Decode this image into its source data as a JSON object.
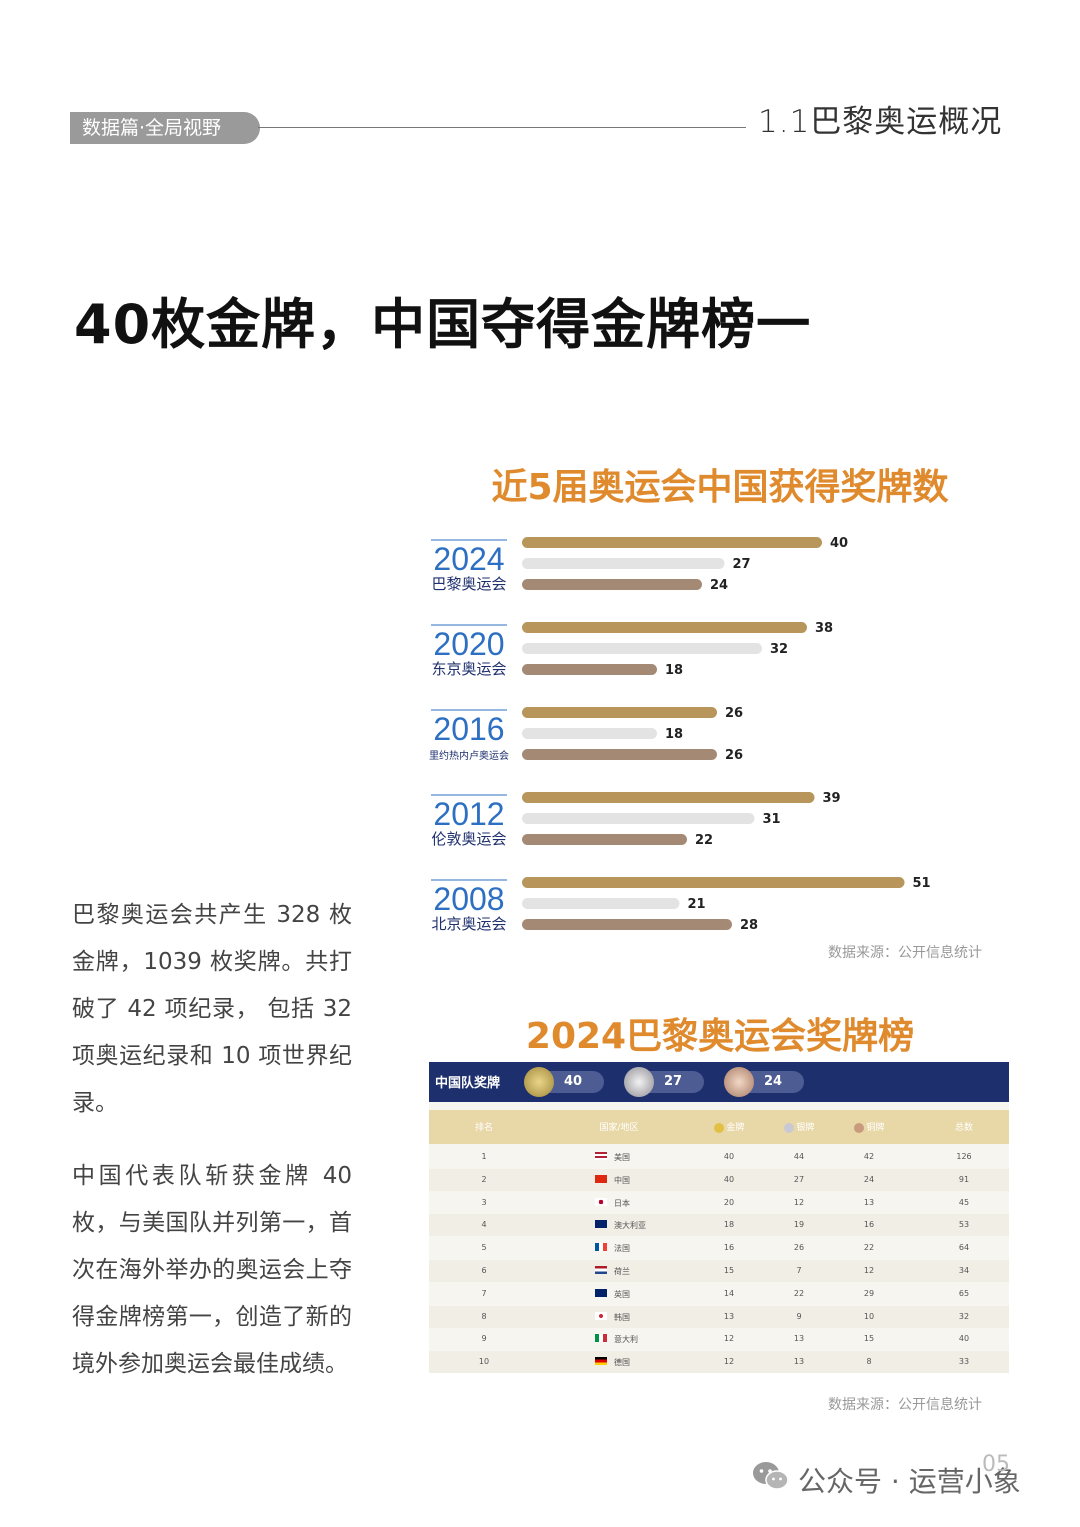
{
  "header": {
    "section_tag": "数据篇·全局视野",
    "section_title": "1.1巴黎奥运概况"
  },
  "headline": "40枚金牌，中国夺得金牌榜一",
  "body": {
    "paragraph1": "巴黎奥运会共产生 328 枚金牌，1039 枚奖牌。共打破了 42 项纪录， 包括 32 项奥运纪录和 10 项世界纪录。",
    "paragraph2": "中国代表队斩获金牌 40 枚，与美国队并列第一，首次在海外举办的奥运会上夺得金牌榜第一，创造了新的境外参加奥运会最佳成绩。"
  },
  "chart_data": {
    "type": "bar",
    "title": "近5届奥运会中国获得奖牌数",
    "categories": [
      {
        "year": "2024",
        "name": "巴黎奥运会"
      },
      {
        "year": "2020",
        "name": "东京奥运会"
      },
      {
        "year": "2016",
        "name": "里约热内卢奥运会"
      },
      {
        "year": "2012",
        "name": "伦敦奥运会"
      },
      {
        "year": "2008",
        "name": "北京奥运会"
      }
    ],
    "series": [
      {
        "key": "gold",
        "values": [
          40,
          38,
          26,
          39,
          51
        ],
        "color": "#b8955a"
      },
      {
        "key": "silver",
        "values": [
          27,
          32,
          18,
          31,
          21
        ],
        "color": "#e3e3e3"
      },
      {
        "key": "bronze",
        "values": [
          24,
          18,
          26,
          22,
          28
        ],
        "color": "#a48a74"
      }
    ],
    "xlim": [
      0,
      55
    ],
    "source": "数据来源：公开信息统计"
  },
  "colors": {
    "accent_orange": "#e08a2e",
    "year_blue": "#2d6fc2",
    "navy": "#1e2f6e"
  },
  "medal_table": {
    "title": "2024巴黎奥运会奖牌榜",
    "team_label": "中国队奖牌",
    "china_totals": {
      "gold": "40",
      "silver": "27",
      "bronze": "24"
    },
    "columns": [
      "排名",
      "国家/地区",
      "金牌",
      "银牌",
      "铜牌",
      "总数"
    ],
    "rows": [
      {
        "rank": "1",
        "country": "美国",
        "flag": "us",
        "gold": "40",
        "silver": "44",
        "bronze": "42",
        "total": "126"
      },
      {
        "rank": "2",
        "country": "中国",
        "flag": "cn",
        "gold": "40",
        "silver": "27",
        "bronze": "24",
        "total": "91"
      },
      {
        "rank": "3",
        "country": "日本",
        "flag": "jp",
        "gold": "20",
        "silver": "12",
        "bronze": "13",
        "total": "45"
      },
      {
        "rank": "4",
        "country": "澳大利亚",
        "flag": "au",
        "gold": "18",
        "silver": "19",
        "bronze": "16",
        "total": "53"
      },
      {
        "rank": "5",
        "country": "法国",
        "flag": "fr",
        "gold": "16",
        "silver": "26",
        "bronze": "22",
        "total": "64"
      },
      {
        "rank": "6",
        "country": "荷兰",
        "flag": "nl",
        "gold": "15",
        "silver": "7",
        "bronze": "12",
        "total": "34"
      },
      {
        "rank": "7",
        "country": "英国",
        "flag": "gb",
        "gold": "14",
        "silver": "22",
        "bronze": "29",
        "total": "65"
      },
      {
        "rank": "8",
        "country": "韩国",
        "flag": "kr",
        "gold": "13",
        "silver": "9",
        "bronze": "10",
        "total": "32"
      },
      {
        "rank": "9",
        "country": "意大利",
        "flag": "it",
        "gold": "12",
        "silver": "13",
        "bronze": "15",
        "total": "40"
      },
      {
        "rank": "10",
        "country": "德国",
        "flag": "de",
        "gold": "12",
        "silver": "13",
        "bronze": "8",
        "total": "33"
      }
    ],
    "source": "数据来源：公开信息统计"
  },
  "footer": {
    "brand": "公众号 · 运营小象",
    "page_number": "05",
    "wechat_icon": "wechat-icon"
  }
}
